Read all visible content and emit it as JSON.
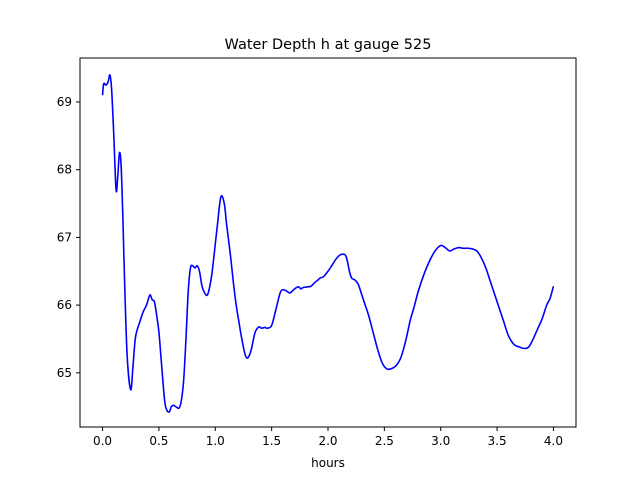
{
  "chart_data": {
    "type": "line",
    "title": "Water Depth h at gauge 525",
    "xlabel": "hours",
    "ylabel": "",
    "xlim": [
      -0.2,
      4.2
    ],
    "ylim": [
      64.2,
      69.65
    ],
    "xticks": [
      0.0,
      0.5,
      1.0,
      1.5,
      2.0,
      2.5,
      3.0,
      3.5,
      4.0
    ],
    "xtick_labels": [
      "0.0",
      "0.5",
      "1.0",
      "1.5",
      "2.0",
      "2.5",
      "3.0",
      "3.5",
      "4.0"
    ],
    "yticks": [
      65,
      66,
      67,
      68,
      69
    ],
    "ytick_labels": [
      "65",
      "66",
      "67",
      "68",
      "69"
    ],
    "grid": false,
    "legend": "none",
    "colors": {
      "line": "#0000ff",
      "axes": "#000000",
      "background": "#ffffff"
    },
    "series": [
      {
        "x": [
          0.0,
          0.01,
          0.03,
          0.05,
          0.065,
          0.08,
          0.1,
          0.12,
          0.135,
          0.15,
          0.165,
          0.18,
          0.2,
          0.22,
          0.25,
          0.27,
          0.29,
          0.31,
          0.33,
          0.36,
          0.39,
          0.42,
          0.44,
          0.46,
          0.48,
          0.5,
          0.52,
          0.55,
          0.57,
          0.59,
          0.6,
          0.61,
          0.63,
          0.65,
          0.68,
          0.7,
          0.72,
          0.74,
          0.76,
          0.78,
          0.8,
          0.82,
          0.84,
          0.86,
          0.88,
          0.9,
          0.93,
          0.96,
          0.98,
          1.0,
          1.02,
          1.05,
          1.08,
          1.1,
          1.13,
          1.15,
          1.17,
          1.19,
          1.21,
          1.23,
          1.26,
          1.28,
          1.3,
          1.32,
          1.35,
          1.37,
          1.39,
          1.41,
          1.44,
          1.46,
          1.5,
          1.54,
          1.58,
          1.62,
          1.66,
          1.69,
          1.72,
          1.74,
          1.76,
          1.78,
          1.82,
          1.85,
          1.88,
          1.91,
          1.93,
          1.96,
          2.0,
          2.04,
          2.08,
          2.12,
          2.16,
          2.19,
          2.21,
          2.24,
          2.27,
          2.3,
          2.33,
          2.36,
          2.4,
          2.44,
          2.48,
          2.52,
          2.56,
          2.6,
          2.64,
          2.67,
          2.7,
          2.73,
          2.76,
          2.8,
          2.85,
          2.9,
          2.95,
          3.0,
          3.04,
          3.08,
          3.12,
          3.16,
          3.2,
          3.24,
          3.28,
          3.32,
          3.36,
          3.4,
          3.44,
          3.48,
          3.52,
          3.56,
          3.6,
          3.65,
          3.7,
          3.74,
          3.78,
          3.82,
          3.86,
          3.9,
          3.94,
          3.97,
          4.0
        ],
        "y": [
          69.1,
          69.27,
          69.25,
          69.3,
          69.4,
          69.2,
          68.5,
          67.7,
          67.9,
          68.25,
          68.05,
          67.3,
          66.1,
          65.2,
          64.75,
          65.1,
          65.5,
          65.65,
          65.75,
          65.9,
          66.0,
          66.15,
          66.08,
          66.05,
          65.85,
          65.6,
          65.2,
          64.6,
          64.45,
          64.42,
          64.45,
          64.5,
          64.52,
          64.5,
          64.48,
          64.6,
          64.9,
          65.5,
          66.2,
          66.55,
          66.58,
          66.55,
          66.58,
          66.5,
          66.3,
          66.2,
          66.15,
          66.35,
          66.6,
          66.9,
          67.2,
          67.6,
          67.5,
          67.2,
          66.8,
          66.5,
          66.2,
          65.95,
          65.75,
          65.55,
          65.3,
          65.22,
          65.25,
          65.35,
          65.58,
          65.65,
          65.68,
          65.66,
          65.67,
          65.66,
          65.7,
          65.95,
          66.2,
          66.22,
          66.18,
          66.22,
          66.26,
          66.27,
          66.24,
          66.26,
          66.27,
          66.28,
          66.33,
          66.37,
          66.4,
          66.42,
          66.5,
          66.6,
          66.7,
          66.75,
          66.72,
          66.5,
          66.4,
          66.37,
          66.3,
          66.15,
          66.0,
          65.85,
          65.6,
          65.35,
          65.15,
          65.06,
          65.06,
          65.1,
          65.2,
          65.35,
          65.55,
          65.78,
          65.95,
          66.2,
          66.45,
          66.65,
          66.8,
          66.88,
          66.85,
          66.8,
          66.83,
          66.85,
          66.84,
          66.84,
          66.83,
          66.8,
          66.7,
          66.55,
          66.35,
          66.15,
          65.95,
          65.75,
          65.55,
          65.42,
          65.38,
          65.36,
          65.38,
          65.5,
          65.65,
          65.8,
          66.0,
          66.1,
          66.28
        ]
      }
    ]
  }
}
